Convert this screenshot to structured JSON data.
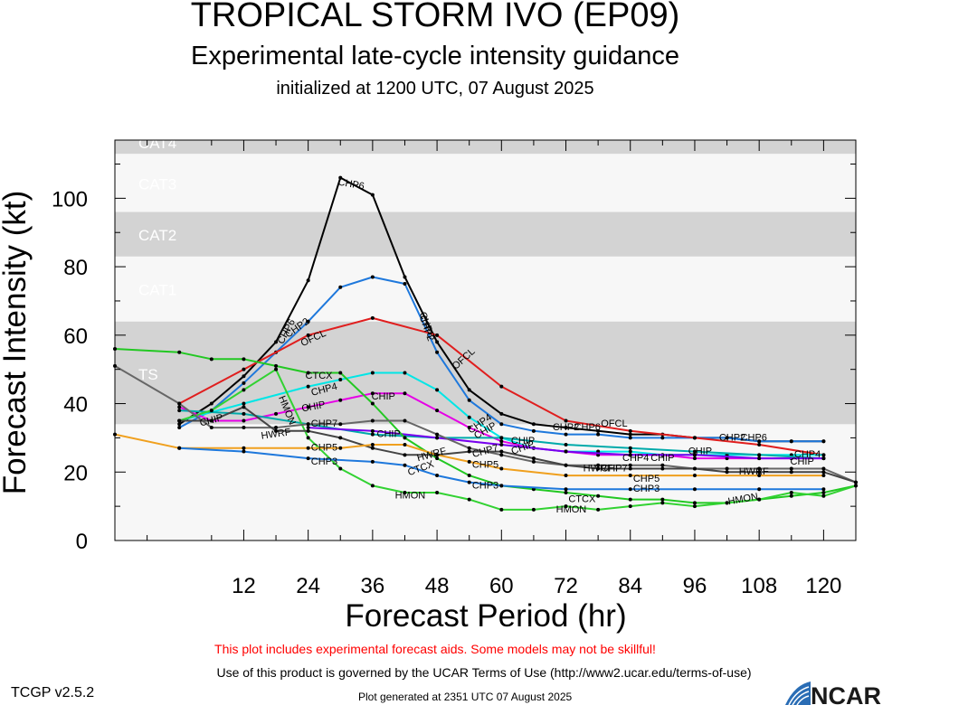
{
  "header": {
    "title": "TROPICAL STORM IVO (EP09)",
    "subtitle": "Experimental late-cycle intensity guidance",
    "initialized": "initialized at 1200 UTC, 07 August 2025"
  },
  "footer": {
    "disclaimer": "This plot includes experimental forecast aids. Some models may not be skillful!",
    "terms": "Use of this product is governed by the UCAR Terms of Use (http://www2.ucar.edu/terms-of-use)",
    "version": "TCGP v2.5.2",
    "generated": "Plot generated at 2351 UTC   07 August 2025",
    "logo_text": "NCAR"
  },
  "chart_data": {
    "type": "line",
    "title": "TROPICAL STORM IVO (EP09)",
    "xlabel": "Forecast Period (hr)",
    "ylabel": "Forecast Intensity (kt)",
    "xlim": [
      -12,
      126
    ],
    "ylim": [
      0,
      117
    ],
    "xticks": [
      12,
      24,
      36,
      48,
      60,
      72,
      84,
      96,
      108,
      120
    ],
    "yticks": [
      0,
      20,
      40,
      60,
      80,
      100
    ],
    "categories_bands": [
      {
        "label": "TS",
        "from": 34,
        "to": 64,
        "color": "#d3d3d3"
      },
      {
        "label": "CAT1",
        "from": 64,
        "to": 83,
        "color": "#f7f7f7"
      },
      {
        "label": "CAT2",
        "from": 83,
        "to": 96,
        "color": "#d3d3d3"
      },
      {
        "label": "CAT3",
        "from": 96,
        "to": 113,
        "color": "#f7f7f7"
      },
      {
        "label": "CAT4",
        "from": 113,
        "to": 117,
        "color": "#d3d3d3"
      }
    ],
    "background_color": "#f7f7f7",
    "series": [
      {
        "name": "CHP6",
        "color": "#000000",
        "x": [
          0,
          6,
          12,
          18,
          24,
          30,
          36,
          42,
          48,
          54,
          60,
          66,
          72,
          78,
          84,
          90,
          96,
          102,
          108,
          114,
          120
        ],
        "y": [
          34,
          40,
          48,
          58,
          76,
          106,
          101,
          77,
          58,
          44,
          37,
          34,
          33,
          32,
          31,
          31,
          30,
          30,
          29,
          29,
          29
        ],
        "labels": [
          {
            "x": 20,
            "y": 61,
            "text": "CHP6",
            "rot": -62
          },
          {
            "x": 32,
            "y": 104,
            "text": "CHP6",
            "rot": 10
          },
          {
            "x": 46,
            "y": 63,
            "text": "CHP6",
            "rot": 70
          },
          {
            "x": 76,
            "y": 33,
            "text": "CHP6",
            "rot": 0
          },
          {
            "x": 107,
            "y": 30,
            "text": "CHP6",
            "rot": 0
          }
        ]
      },
      {
        "name": "CHP2",
        "color": "#1e78dc",
        "x": [
          0,
          6,
          12,
          18,
          24,
          30,
          36,
          42,
          48,
          54,
          60,
          66,
          72,
          78,
          84,
          90,
          96,
          102,
          108,
          114,
          120
        ],
        "y": [
          33,
          38,
          46,
          55,
          64,
          74,
          77,
          75,
          55,
          41,
          34,
          32,
          31,
          31,
          30,
          30,
          30,
          30,
          29,
          29,
          29
        ],
        "labels": [
          {
            "x": 22,
            "y": 62,
            "text": "CHP2",
            "rot": -35
          },
          {
            "x": 46,
            "y": 62,
            "text": "CHP2",
            "rot": 70
          },
          {
            "x": 72,
            "y": 33,
            "text": "CHP2",
            "rot": 0
          },
          {
            "x": 103,
            "y": 30,
            "text": "CHP2",
            "rot": 0
          }
        ]
      },
      {
        "name": "OFCL",
        "color": "#e01e1e",
        "x": [
          0,
          12,
          24,
          36,
          48,
          60,
          72,
          84,
          96,
          108,
          120
        ],
        "y": [
          40,
          50,
          60,
          65,
          60,
          45,
          35,
          32,
          30,
          28,
          25
        ],
        "labels": [
          {
            "x": 25,
            "y": 59,
            "text": "OFCL",
            "rot": -25
          },
          {
            "x": 53,
            "y": 53,
            "text": "OFCL",
            "rot": -42
          },
          {
            "x": 81,
            "y": 34,
            "text": "OFCL",
            "rot": 0
          }
        ]
      },
      {
        "name": "CHP4",
        "color": "#00e6e6",
        "x": [
          0,
          12,
          24,
          30,
          36,
          42,
          48,
          54,
          60,
          66,
          72,
          78,
          84,
          90,
          96,
          102,
          108,
          114,
          120
        ],
        "y": [
          35,
          40,
          45,
          47,
          49,
          49,
          44,
          36,
          30,
          27,
          26,
          26,
          26,
          25,
          25,
          25,
          25,
          25,
          25
        ],
        "labels": [
          {
            "x": 27,
            "y": 44,
            "text": "CHP4",
            "rot": -15
          },
          {
            "x": 56,
            "y": 34,
            "text": "CHP4",
            "rot": -35
          },
          {
            "x": 85,
            "y": 24,
            "text": "CHP4",
            "rot": 0
          },
          {
            "x": 117,
            "y": 25,
            "text": "CHP4",
            "rot": 0
          }
        ]
      },
      {
        "name": "CHIP",
        "color": "#e600e6",
        "x": [
          0,
          6,
          12,
          18,
          24,
          30,
          36,
          42,
          48,
          54,
          60,
          66,
          72,
          78,
          84,
          90,
          96,
          102,
          108,
          114,
          120
        ],
        "y": [
          39,
          35,
          35,
          37,
          39,
          41,
          43,
          43,
          38,
          33,
          29,
          27,
          26,
          25,
          25,
          25,
          24,
          24,
          24,
          24,
          24
        ],
        "labels": [
          {
            "x": 25,
            "y": 39,
            "text": "CHIP",
            "rot": -10
          },
          {
            "x": 38,
            "y": 42,
            "text": "CHIP",
            "rot": 0
          },
          {
            "x": 57,
            "y": 32,
            "text": "CHIP",
            "rot": -30
          },
          {
            "x": 64,
            "y": 27,
            "text": "CHIP",
            "rot": -20
          },
          {
            "x": 90,
            "y": 24,
            "text": "CHIP",
            "rot": 0
          },
          {
            "x": 116,
            "y": 23,
            "text": "CHIP",
            "rot": 0
          }
        ]
      },
      {
        "name": "CHIP",
        "color": "#00aaaa",
        "x": [
          0,
          12,
          24,
          36,
          48,
          60,
          72,
          84,
          96,
          108,
          120
        ],
        "y": [
          38,
          37,
          34,
          31,
          30,
          30,
          28,
          27,
          26,
          25,
          24
        ],
        "labels": [
          {
            "x": 6,
            "y": 35,
            "text": "CHIP",
            "rot": -15
          },
          {
            "x": 64,
            "y": 29,
            "text": "CHIP",
            "rot": 0
          },
          {
            "x": 97,
            "y": 26,
            "text": "CHIP",
            "rot": 0
          }
        ]
      },
      {
        "name": "CHIP",
        "color": "#7700ee",
        "x": [
          24,
          36,
          48,
          60,
          72,
          84,
          96,
          108,
          120
        ],
        "y": [
          33,
          32,
          30,
          28,
          26,
          25,
          25,
          24,
          24
        ],
        "labels": [
          {
            "x": 39,
            "y": 31,
            "text": "CHIP",
            "rot": 0
          }
        ]
      },
      {
        "name": "CTCX",
        "color": "#22c822",
        "x": [
          -12,
          0,
          6,
          12,
          18,
          24,
          30,
          36,
          42,
          48,
          54,
          60,
          66,
          72,
          78,
          84,
          90,
          96,
          102,
          108,
          114,
          120,
          126
        ],
        "y": [
          56,
          55,
          53,
          53,
          51,
          49,
          49,
          40,
          30,
          24,
          19,
          16,
          15,
          14,
          13,
          12,
          12,
          11,
          11,
          12,
          13,
          14,
          16
        ],
        "labels": [
          {
            "x": 26,
            "y": 48,
            "text": "CTCX",
            "rot": 0
          },
          {
            "x": 45,
            "y": 21,
            "text": "CTCX",
            "rot": -20
          },
          {
            "x": 75,
            "y": 12,
            "text": "CTCX",
            "rot": 0
          }
        ]
      },
      {
        "name": "HMON",
        "color": "#32d232",
        "x": [
          0,
          6,
          12,
          18,
          24,
          30,
          36,
          42,
          48,
          54,
          60,
          66,
          72,
          78,
          84,
          90,
          96,
          102,
          108,
          114,
          120,
          126
        ],
        "y": [
          35,
          38,
          44,
          50,
          30,
          21,
          16,
          14,
          14,
          12,
          9,
          9,
          10,
          9,
          10,
          11,
          10,
          11,
          12,
          14,
          13,
          16
        ],
        "labels": [
          {
            "x": 20,
            "y": 38,
            "text": "HMON",
            "rot": 68
          },
          {
            "x": 43,
            "y": 13,
            "text": "HMON",
            "rot": 0
          },
          {
            "x": 73,
            "y": 9,
            "text": "HMON",
            "rot": 0
          },
          {
            "x": 105,
            "y": 12,
            "text": "HMON",
            "rot": -10
          }
        ]
      },
      {
        "name": "CHP7",
        "color": "#666666",
        "x": [
          -12,
          0,
          6,
          12,
          18,
          24,
          30,
          36,
          42,
          48,
          54,
          60,
          66,
          72,
          78,
          84,
          90,
          96,
          102,
          108,
          114,
          120,
          126
        ],
        "y": [
          51,
          40,
          33,
          33,
          33,
          34,
          34,
          35,
          35,
          31,
          27,
          25,
          23,
          22,
          22,
          22,
          22,
          21,
          21,
          21,
          21,
          21,
          17
        ],
        "labels": [
          {
            "x": 27,
            "y": 34,
            "text": "CHP7",
            "rot": 0
          },
          {
            "x": 57,
            "y": 26,
            "text": "CHP7",
            "rot": -15
          },
          {
            "x": 81,
            "y": 21,
            "text": "CHP7",
            "rot": 0
          }
        ]
      },
      {
        "name": "HWRF",
        "color": "#444444",
        "x": [
          0,
          6,
          12,
          18,
          24,
          30,
          36,
          42,
          48,
          54,
          60,
          66,
          72,
          78,
          84,
          90,
          96,
          102,
          108,
          114,
          120,
          126
        ],
        "y": [
          35,
          35,
          39,
          32,
          32,
          30,
          27,
          25,
          25,
          26,
          26,
          24,
          22,
          21,
          21,
          21,
          21,
          20,
          20,
          20,
          20,
          17
        ],
        "labels": [
          {
            "x": 18,
            "y": 31,
            "text": "HWRF",
            "rot": -8
          },
          {
            "x": 47,
            "y": 25,
            "text": "HWRF",
            "rot": -15
          },
          {
            "x": 78,
            "y": 21,
            "text": "HWRF",
            "rot": 0
          },
          {
            "x": 107,
            "y": 20,
            "text": "HWRF",
            "rot": 0
          }
        ]
      },
      {
        "name": "CHP5",
        "color": "#f0a01e",
        "x": [
          -12,
          0,
          12,
          24,
          30,
          36,
          42,
          48,
          54,
          60,
          72,
          84,
          96,
          108,
          120
        ],
        "y": [
          31,
          27,
          27,
          27,
          27,
          28,
          28,
          25,
          23,
          21,
          19,
          19,
          19,
          19,
          19
        ],
        "labels": [
          {
            "x": 27,
            "y": 27,
            "text": "CHP5",
            "rot": 0
          },
          {
            "x": 57,
            "y": 22,
            "text": "CHP5",
            "rot": 0
          },
          {
            "x": 87,
            "y": 18,
            "text": "CHP5",
            "rot": 0
          }
        ]
      },
      {
        "name": "CHP3",
        "color": "#1e78dc",
        "x": [
          0,
          12,
          24,
          36,
          42,
          48,
          54,
          60,
          72,
          84,
          96,
          108,
          120
        ],
        "y": [
          27,
          26,
          24,
          23,
          22,
          19,
          17,
          16,
          15,
          15,
          15,
          15,
          15
        ],
        "labels": [
          {
            "x": 27,
            "y": 23,
            "text": "CHP3",
            "rot": 0
          },
          {
            "x": 57,
            "y": 16,
            "text": "CHP3",
            "rot": 0
          },
          {
            "x": 87,
            "y": 15,
            "text": "CHP3",
            "rot": 0
          }
        ]
      }
    ],
    "band_labels": [
      "TS",
      "CAT1",
      "CAT2",
      "CAT3",
      "CAT4"
    ]
  }
}
